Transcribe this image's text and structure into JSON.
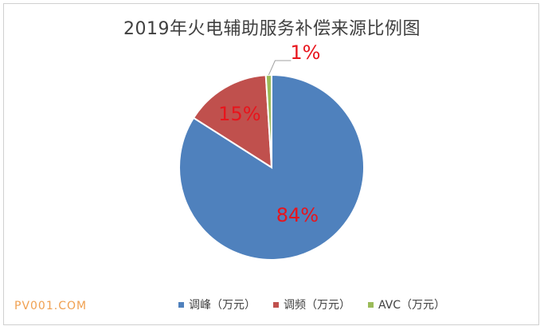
{
  "chart_data": {
    "type": "pie",
    "title": "2019年火电辅助服务补偿来源比例图",
    "categories": [
      "调峰（万元）",
      "调频（万元）",
      "AVC（万元）"
    ],
    "values": [
      84,
      15,
      1
    ],
    "data_labels": [
      "84%",
      "15%",
      "1%"
    ],
    "colors": [
      "#4f81bd",
      "#c0504d",
      "#9bbb59"
    ],
    "label_color": "#e8141c",
    "legend_position": "bottom"
  },
  "watermark": "PV001.COM"
}
